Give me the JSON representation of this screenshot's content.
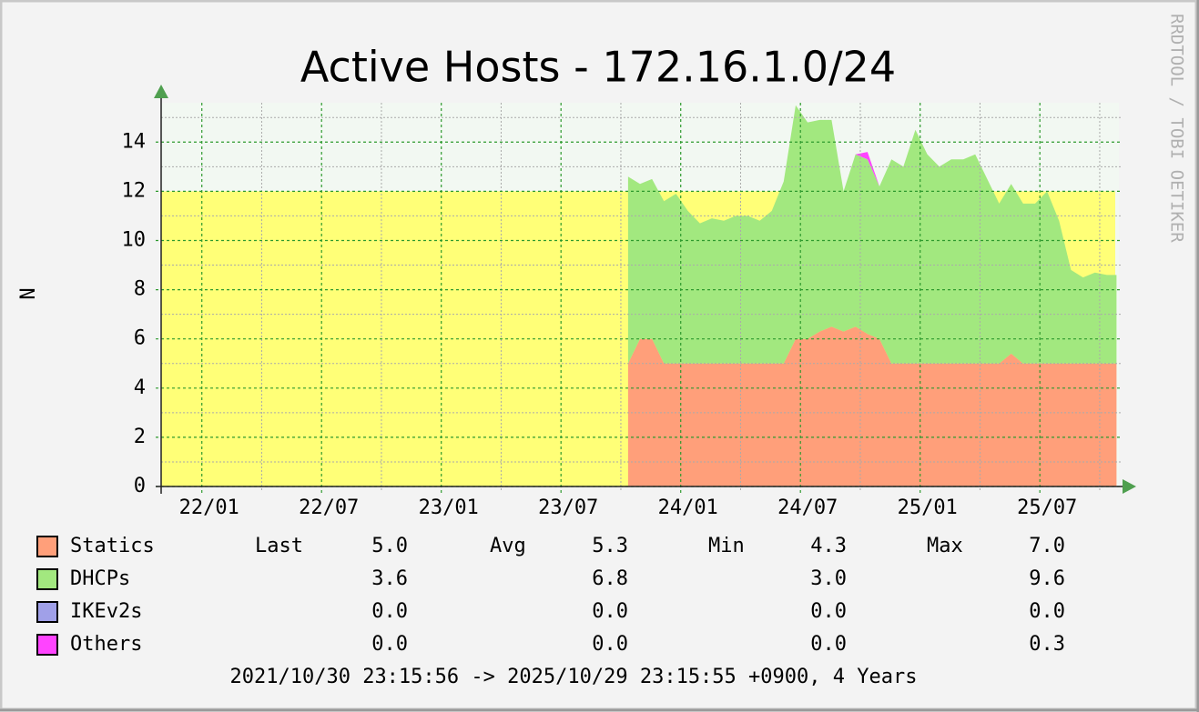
{
  "chart_data": {
    "type": "area",
    "title": "Active Hosts - 172.16.1.0/24",
    "y_label": "N",
    "watermark": "RRDTOOL / TOBI OETIKER",
    "footer": "2021/10/30 23:15:56 -> 2025/10/29 23:15:55 +0900, 4 Years",
    "xlim": [
      2021.83,
      2025.83
    ],
    "xticks": [
      {
        "value": 2022.0,
        "label": "22/01"
      },
      {
        "value": 2022.5,
        "label": "22/07"
      },
      {
        "value": 2023.0,
        "label": "23/01"
      },
      {
        "value": 2023.5,
        "label": "23/07"
      },
      {
        "value": 2024.0,
        "label": "24/01"
      },
      {
        "value": 2024.5,
        "label": "24/07"
      },
      {
        "value": 2025.0,
        "label": "25/01"
      },
      {
        "value": 2025.5,
        "label": "25/07"
      }
    ],
    "ylim": [
      0,
      15.6
    ],
    "yticks": [
      0,
      2,
      4,
      6,
      8,
      10,
      12,
      14
    ],
    "grid": true,
    "band": {
      "value": 12,
      "color": "#ffff77"
    },
    "x": [
      2023.78,
      2023.83,
      2023.88,
      2023.93,
      2023.98,
      2024.03,
      2024.08,
      2024.13,
      2024.18,
      2024.23,
      2024.28,
      2024.33,
      2024.38,
      2024.43,
      2024.48,
      2024.53,
      2024.58,
      2024.63,
      2024.68,
      2024.73,
      2024.78,
      2024.83,
      2024.88,
      2024.93,
      2024.98,
      2025.03,
      2025.08,
      2025.13,
      2025.18,
      2025.23,
      2025.28,
      2025.33,
      2025.38,
      2025.43,
      2025.48,
      2025.53,
      2025.58,
      2025.63,
      2025.68,
      2025.73,
      2025.78,
      2025.82
    ],
    "series": [
      {
        "name": "Statics",
        "color": "#ff9f7a",
        "values": [
          5.0,
          6.0,
          6.0,
          5.0,
          5.0,
          5.0,
          5.0,
          5.0,
          5.0,
          5.0,
          5.0,
          5.0,
          5.0,
          5.0,
          6.0,
          6.0,
          6.3,
          6.5,
          6.3,
          6.5,
          6.2,
          6.0,
          5.0,
          5.0,
          5.0,
          5.0,
          5.0,
          5.0,
          5.0,
          5.0,
          5.0,
          5.0,
          5.4,
          5.0,
          5.0,
          5.0,
          5.0,
          5.0,
          5.0,
          5.0,
          5.0,
          5.0
        ]
      },
      {
        "name": "DHCPs",
        "color": "#a2e87f",
        "values": [
          7.6,
          6.3,
          6.5,
          6.6,
          6.9,
          6.2,
          5.7,
          5.9,
          5.8,
          6.0,
          6.0,
          5.8,
          6.2,
          7.4,
          9.5,
          8.8,
          8.6,
          8.4,
          5.7,
          7.0,
          7.1,
          6.2,
          8.3,
          8.0,
          9.5,
          8.5,
          8.0,
          8.3,
          8.3,
          8.5,
          7.5,
          6.5,
          6.9,
          6.5,
          6.5,
          7.0,
          5.8,
          3.8,
          3.5,
          3.7,
          3.6,
          3.6
        ]
      },
      {
        "name": "IKEv2s",
        "color": "#a0a0e8",
        "values": [
          0,
          0,
          0,
          0,
          0,
          0,
          0,
          0,
          0,
          0,
          0,
          0,
          0,
          0,
          0,
          0,
          0,
          0,
          0,
          0,
          0,
          0,
          0,
          0,
          0,
          0,
          0,
          0,
          0,
          0,
          0,
          0,
          0,
          0,
          0,
          0,
          0,
          0,
          0,
          0,
          0,
          0
        ]
      },
      {
        "name": "Others",
        "color": "#ff44ff",
        "values": [
          0,
          0,
          0,
          0,
          0,
          0,
          0,
          0,
          0,
          0,
          0,
          0,
          0,
          0,
          0,
          0,
          0,
          0,
          0,
          0,
          0.3,
          0,
          0,
          0,
          0,
          0,
          0,
          0,
          0,
          0,
          0,
          0,
          0,
          0,
          0,
          0,
          0,
          0,
          0,
          0,
          0,
          0
        ]
      }
    ],
    "summary": {
      "columns": [
        "Last",
        "Avg",
        "Min",
        "Max"
      ],
      "rows": [
        [
          "5.0",
          "5.3",
          "4.3",
          "7.0"
        ],
        [
          "3.6",
          "6.8",
          "3.0",
          "9.6"
        ],
        [
          "0.0",
          "0.0",
          "0.0",
          "0.0"
        ],
        [
          "0.0",
          "0.0",
          "0.0",
          "0.3"
        ]
      ]
    }
  }
}
